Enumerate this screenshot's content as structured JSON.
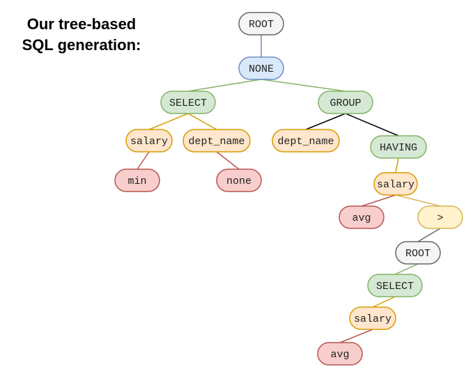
{
  "title": {
    "line1": "Our tree-based",
    "line2": "SQL generation:"
  },
  "styles": {
    "gray": {
      "fill": "#f5f5f5",
      "stroke": "#666666"
    },
    "blue": {
      "fill": "#dae8fc",
      "stroke": "#6c8ebf"
    },
    "green": {
      "fill": "#d5e8d4",
      "stroke": "#82b366"
    },
    "orange": {
      "fill": "#ffe6cc",
      "stroke": "#d79b00"
    },
    "red": {
      "fill": "#f8cecc",
      "stroke": "#b85450"
    },
    "yellow": {
      "fill": "#fff2cc",
      "stroke": "#d6b656"
    }
  },
  "edge_colors": {
    "blue": "#6c8ebf",
    "green": "#82b366",
    "orange": "#d79b00",
    "red": "#b85450",
    "black": "#000000",
    "yellow": "#d6b656",
    "gray": "#666666"
  },
  "nodes": [
    {
      "id": "root1",
      "label": "ROOT",
      "style": "gray"
    },
    {
      "id": "none1",
      "label": "NONE",
      "style": "blue"
    },
    {
      "id": "select1",
      "label": "SELECT",
      "style": "green"
    },
    {
      "id": "group1",
      "label": "GROUP",
      "style": "green"
    },
    {
      "id": "salary1",
      "label": "salary",
      "style": "orange"
    },
    {
      "id": "deptname1",
      "label": "dept_name",
      "style": "orange"
    },
    {
      "id": "deptname2",
      "label": "dept_name",
      "style": "orange"
    },
    {
      "id": "having1",
      "label": "HAVING",
      "style": "green"
    },
    {
      "id": "min1",
      "label": "min",
      "style": "red"
    },
    {
      "id": "none2",
      "label": "none",
      "style": "red"
    },
    {
      "id": "salary2",
      "label": "salary",
      "style": "orange"
    },
    {
      "id": "avg1",
      "label": "avg",
      "style": "red"
    },
    {
      "id": "gt1",
      "label": ">",
      "style": "yellow"
    },
    {
      "id": "root2",
      "label": "ROOT",
      "style": "gray"
    },
    {
      "id": "select2",
      "label": "SELECT",
      "style": "green"
    },
    {
      "id": "salary3",
      "label": "salary",
      "style": "orange"
    },
    {
      "id": "avg2",
      "label": "avg",
      "style": "red"
    }
  ],
  "edges": [
    {
      "from": "root1",
      "to": "none1",
      "color": "blue"
    },
    {
      "from": "none1",
      "to": "select1",
      "color": "green"
    },
    {
      "from": "none1",
      "to": "group1",
      "color": "green"
    },
    {
      "from": "select1",
      "to": "salary1",
      "color": "orange"
    },
    {
      "from": "select1",
      "to": "deptname1",
      "color": "orange"
    },
    {
      "from": "salary1",
      "to": "min1",
      "color": "red"
    },
    {
      "from": "deptname1",
      "to": "none2",
      "color": "red"
    },
    {
      "from": "group1",
      "to": "deptname2",
      "color": "black"
    },
    {
      "from": "group1",
      "to": "having1",
      "color": "black"
    },
    {
      "from": "having1",
      "to": "salary2",
      "color": "orange"
    },
    {
      "from": "salary2",
      "to": "avg1",
      "color": "red"
    },
    {
      "from": "salary2",
      "to": "gt1",
      "color": "yellow"
    },
    {
      "from": "gt1",
      "to": "root2",
      "color": "gray"
    },
    {
      "from": "root2",
      "to": "select2",
      "color": "green"
    },
    {
      "from": "select2",
      "to": "salary3",
      "color": "orange"
    },
    {
      "from": "salary3",
      "to": "avg2",
      "color": "red"
    }
  ]
}
